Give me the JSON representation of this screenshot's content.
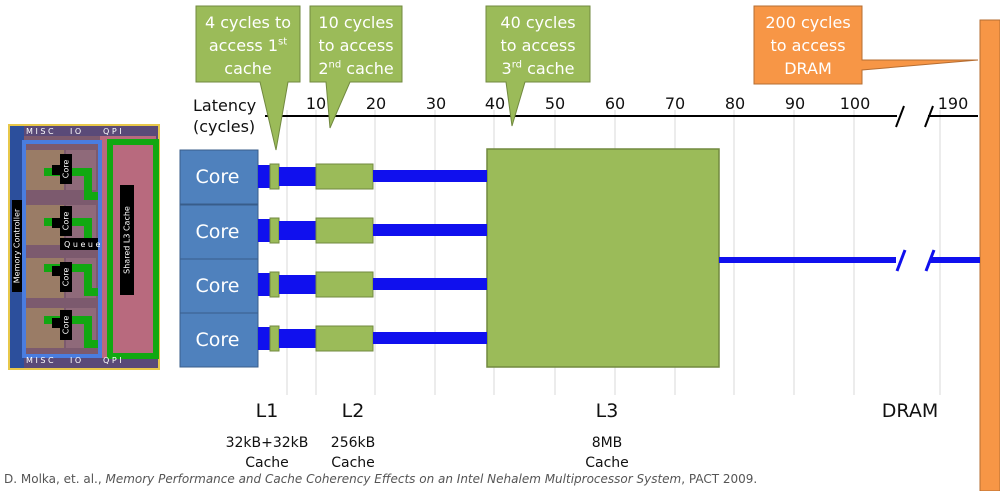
{
  "callouts": {
    "l1": {
      "line1": "4 cycles to",
      "line2": "access 1",
      "sup": "st",
      "line3": "cache"
    },
    "l2": {
      "line1": "10 cycles",
      "line2": "to access",
      "line3_pre": "2",
      "sup": "nd",
      "line3_post": " cache"
    },
    "l3": {
      "line1": "40 cycles",
      "line2": "to access",
      "line3_pre": "3",
      "sup": "rd",
      "line3_post": " cache"
    },
    "dram": {
      "line1": "200 cycles",
      "line2": "to access",
      "line3": "DRAM"
    }
  },
  "axis": {
    "title_line1": "Latency",
    "title_line2": "(cycles)",
    "ticks": [
      "10",
      "20",
      "30",
      "40",
      "50",
      "60",
      "70",
      "80",
      "90",
      "100",
      "190"
    ]
  },
  "cores": [
    "Core",
    "Core",
    "Core",
    "Core"
  ],
  "levels": {
    "l1": {
      "name": "L1",
      "size_line1": "32kB+32kB",
      "size_line2": "Cache"
    },
    "l2": {
      "name": "L2",
      "size_line1": "256kB",
      "size_line2": "Cache"
    },
    "l3": {
      "name": "L3",
      "size_line1": "8MB",
      "size_line2": "Cache"
    },
    "dram": {
      "name": "DRAM"
    }
  },
  "die": {
    "memory_controller": "Memory Controller",
    "shared_l3": "Shared L3 Cache",
    "core": "Core",
    "queue": "Q u e u e",
    "misc": "M I S C",
    "io": "I O",
    "qpi": "Q P I"
  },
  "citation": {
    "prefix": "D. Molka, et. al., ",
    "title": "Memory Performance and Cache Coherency Effects on an Intel Nehalem Multiprocessor System",
    "suffix": ", PACT 2009."
  },
  "colors": {
    "callout_green": "#9bbb59",
    "callout_orange": "#f79646",
    "core_blue": "#4f81bd",
    "cache_green": "#9bbb59",
    "bus_blue": "#1010ee"
  }
}
